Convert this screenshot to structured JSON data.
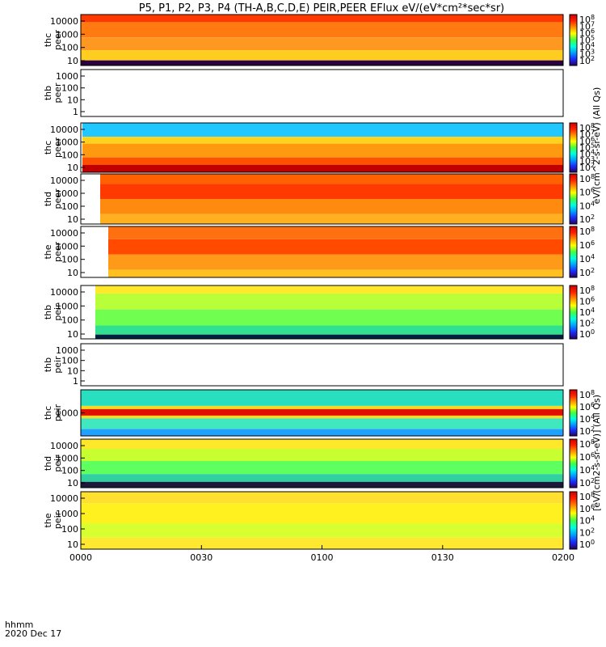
{
  "title": "P5, P1, P2, P3, P4 (TH-A,B,C,D,E) PEIR,PEER EFlux eV/(eV*cm²*sec*sr)",
  "time_axis": {
    "label_line1": "hhmm",
    "label_line2": "2020 Dec 17",
    "ticks": [
      "0000",
      "0030",
      "0100",
      "0130",
      "0200"
    ]
  },
  "colorbar": {
    "label_electron": "eV/(cm^2-s-sr-eV) (All Qs)",
    "label_ion": "[eV/(cm2-s-sr-eV)] (All Qs)",
    "colors": [
      "#2a0060",
      "#1a2cff",
      "#00a0ff",
      "#00ffe0",
      "#40ff40",
      "#ffff00",
      "#ff9000",
      "#ff2000",
      "#d00000"
    ]
  },
  "chart_data": {
    "type": "heatmap",
    "x_range_hhmm": [
      "0000",
      "0200"
    ],
    "y_scale": "log",
    "panels": [
      {
        "ylabel": [
          "thc",
          "peer"
        ],
        "yticks": [
          "10000",
          "1000",
          "100",
          "10"
        ],
        "cbar_ticks": [
          "10^8",
          "10^7",
          "10^6",
          "10^5",
          "10^4",
          "10^3",
          "10^2"
        ],
        "has_data": true,
        "dominant": "red-orange"
      },
      {
        "ylabel": [
          "thb",
          "peer"
        ],
        "yticks": [
          "1000",
          "100",
          "10",
          "1"
        ],
        "cbar_ticks": [],
        "has_data": false
      },
      {
        "ylabel": [
          "thc",
          "peer"
        ],
        "yticks": [
          "10000",
          "1000",
          "100",
          "10"
        ],
        "cbar_ticks": [
          "10^8",
          "10^7",
          "10^6",
          "10^5",
          "10^4",
          "10^3",
          "10^2"
        ],
        "has_data": true,
        "dominant": "orange with cyan top"
      },
      {
        "ylabel": [
          "thd",
          "peer"
        ],
        "yticks": [
          "10000",
          "1000",
          "100",
          "10"
        ],
        "cbar_ticks": [
          "10^8",
          "10^6",
          "10^4",
          "10^2"
        ],
        "has_data": true,
        "dominant": "red-orange"
      },
      {
        "ylabel": [
          "the",
          "peer"
        ],
        "yticks": [
          "10000",
          "1000",
          "100",
          "10"
        ],
        "cbar_ticks": [
          "10^8",
          "10^6",
          "10^4",
          "10^2"
        ],
        "has_data": true,
        "dominant": "orange-red"
      },
      {
        "ylabel": [
          "thb",
          "peir"
        ],
        "yticks": [
          "10000",
          "1000",
          "100",
          "10"
        ],
        "cbar_ticks": [
          "10^8",
          "10^6",
          "10^4",
          "10^2",
          "10^0"
        ],
        "has_data": true,
        "dominant": "yellow-green"
      },
      {
        "ylabel": [
          "thb",
          "peir"
        ],
        "yticks": [
          "1000",
          "100",
          "10",
          "1"
        ],
        "cbar_ticks": [],
        "has_data": false
      },
      {
        "ylabel": [
          "thc",
          "peir"
        ],
        "yticks": [
          "1000"
        ],
        "cbar_ticks": [
          "10^8",
          "10^6",
          "10^4",
          "10^2"
        ],
        "has_data": true,
        "dominant": "green with red band"
      },
      {
        "ylabel": [
          "thd",
          "peir"
        ],
        "yticks": [
          "10000",
          "1000",
          "100",
          "10"
        ],
        "cbar_ticks": [
          "10^8",
          "10^6",
          "10^4",
          "10^2"
        ],
        "has_data": true,
        "dominant": "yellow-green"
      },
      {
        "ylabel": [
          "the",
          "peir"
        ],
        "yticks": [
          "10000",
          "1000",
          "100",
          "10"
        ],
        "cbar_ticks": [
          "10^8",
          "10^6",
          "10^4",
          "10^2",
          "10^0"
        ],
        "has_data": true,
        "dominant": "yellow"
      }
    ]
  }
}
